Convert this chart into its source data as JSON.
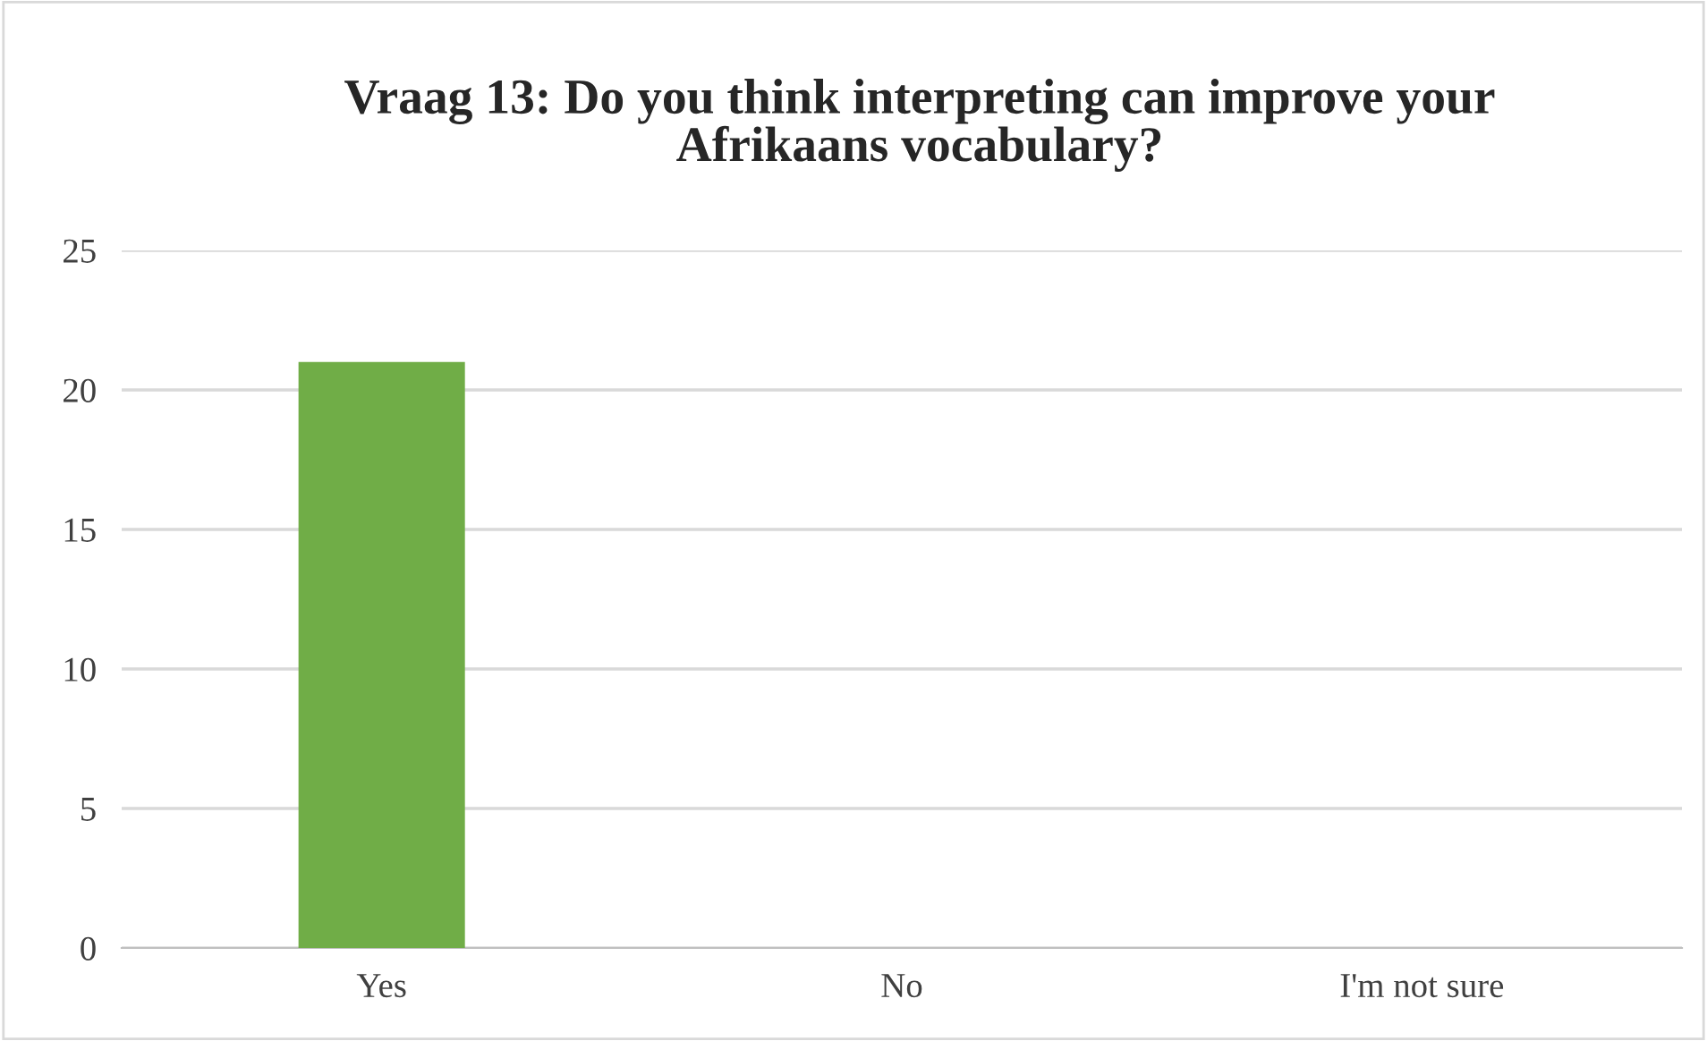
{
  "chart_data": {
    "type": "bar",
    "title": "Vraag 13: Do you think interpreting can improve your\nAfrikaans vocabulary?",
    "categories": [
      "Yes",
      "No",
      "I'm not sure"
    ],
    "values": [
      21,
      0,
      0
    ],
    "color": "#70ad47",
    "ylim": [
      0,
      25
    ],
    "yticks": [
      0,
      5,
      10,
      15,
      20,
      25
    ],
    "grid": "y"
  }
}
